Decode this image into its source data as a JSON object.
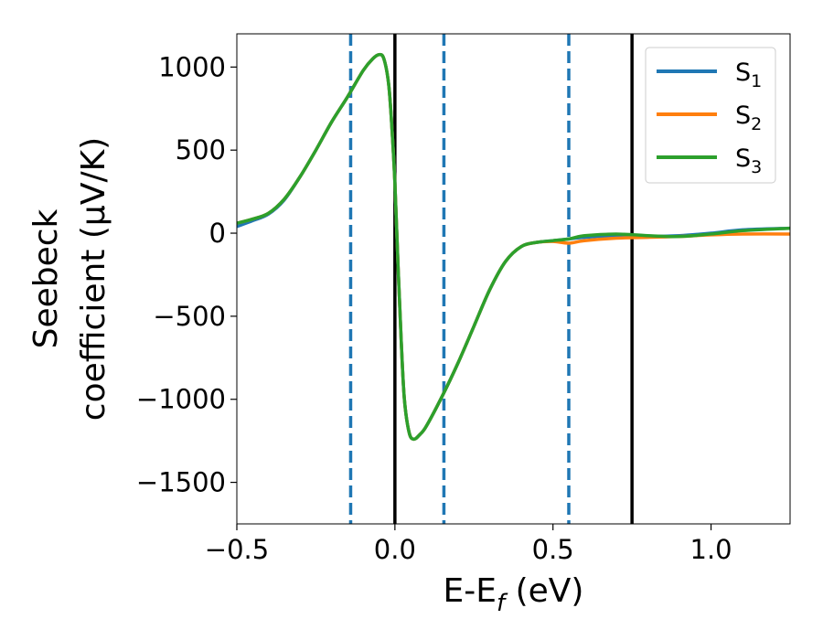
{
  "chart_data": {
    "type": "line",
    "xlabel": {
      "main": "E-E",
      "sub": "f",
      "rest": " (eV)"
    },
    "ylabel": {
      "line1": "Seebeck",
      "line2": "coefficient  (μV/K)"
    },
    "xlim": [
      -0.5,
      1.25
    ],
    "ylim": [
      -1750,
      1200
    ],
    "xticks": [
      {
        "value": -0.5,
        "label": "−0.5"
      },
      {
        "value": 0.0,
        "label": "0.0"
      },
      {
        "value": 0.5,
        "label": "0.5"
      },
      {
        "value": 1.0,
        "label": "1.0"
      }
    ],
    "yticks": [
      {
        "value": 1000,
        "label": "1000"
      },
      {
        "value": 500,
        "label": "500"
      },
      {
        "value": 0,
        "label": "0"
      },
      {
        "value": -500,
        "label": "−500"
      },
      {
        "value": -1000,
        "label": "−1000"
      },
      {
        "value": -1500,
        "label": "−1500"
      }
    ],
    "vlines_solid": [
      0.0,
      0.75
    ],
    "vlines_dashed": [
      -0.14,
      0.155,
      0.55
    ],
    "legend_position": "top-right",
    "grid": false,
    "series": [
      {
        "name": "S",
        "sub": "1",
        "color": "#1f77b4",
        "x": [
          -0.5,
          -0.45,
          -0.4,
          -0.35,
          -0.3,
          -0.25,
          -0.2,
          -0.15,
          -0.1,
          -0.07,
          -0.05,
          -0.035,
          -0.02,
          -0.01,
          0.0,
          0.01,
          0.02,
          0.03,
          0.045,
          0.06,
          0.08,
          0.1,
          0.15,
          0.2,
          0.25,
          0.3,
          0.35,
          0.4,
          0.45,
          0.5,
          0.55,
          0.6,
          0.7,
          0.8,
          0.9,
          1.0,
          1.1,
          1.25
        ],
        "y": [
          40,
          75,
          115,
          200,
          340,
          500,
          670,
          820,
          980,
          1050,
          1075,
          1050,
          900,
          650,
          300,
          -200,
          -650,
          -1000,
          -1200,
          -1240,
          -1210,
          -1160,
          -980,
          -780,
          -560,
          -340,
          -170,
          -80,
          -55,
          -45,
          -35,
          -25,
          -15,
          -20,
          -15,
          0,
          20,
          30
        ]
      },
      {
        "name": "S",
        "sub": "2",
        "color": "#ff7f0e",
        "x": [
          -0.5,
          -0.45,
          -0.4,
          -0.35,
          -0.3,
          -0.25,
          -0.2,
          -0.15,
          -0.1,
          -0.07,
          -0.05,
          -0.035,
          -0.02,
          -0.01,
          0.0,
          0.01,
          0.02,
          0.03,
          0.045,
          0.06,
          0.08,
          0.1,
          0.15,
          0.2,
          0.25,
          0.3,
          0.35,
          0.4,
          0.45,
          0.5,
          0.55,
          0.6,
          0.7,
          0.8,
          0.9,
          1.0,
          1.1,
          1.25
        ],
        "y": [
          60,
          85,
          120,
          205,
          340,
          500,
          670,
          820,
          980,
          1050,
          1075,
          1050,
          900,
          650,
          300,
          -200,
          -650,
          -1000,
          -1200,
          -1240,
          -1210,
          -1160,
          -980,
          -780,
          -560,
          -340,
          -170,
          -80,
          -55,
          -50,
          -60,
          -45,
          -30,
          -25,
          -20,
          -10,
          -5,
          -5
        ]
      },
      {
        "name": "S",
        "sub": "3",
        "color": "#2ca02c",
        "x": [
          -0.5,
          -0.45,
          -0.4,
          -0.35,
          -0.3,
          -0.25,
          -0.2,
          -0.15,
          -0.1,
          -0.07,
          -0.05,
          -0.035,
          -0.02,
          -0.01,
          0.0,
          0.01,
          0.02,
          0.03,
          0.045,
          0.06,
          0.08,
          0.1,
          0.15,
          0.2,
          0.25,
          0.3,
          0.35,
          0.4,
          0.45,
          0.5,
          0.55,
          0.6,
          0.7,
          0.8,
          0.9,
          1.0,
          1.1,
          1.25
        ],
        "y": [
          60,
          85,
          120,
          205,
          340,
          500,
          670,
          820,
          980,
          1050,
          1075,
          1050,
          900,
          650,
          300,
          -200,
          -650,
          -1000,
          -1200,
          -1240,
          -1210,
          -1160,
          -980,
          -780,
          -560,
          -340,
          -170,
          -80,
          -55,
          -45,
          -35,
          -15,
          -5,
          -15,
          -20,
          -5,
          15,
          30
        ]
      }
    ]
  }
}
